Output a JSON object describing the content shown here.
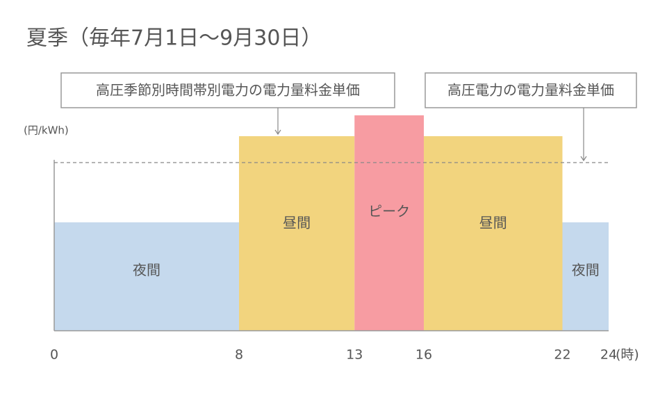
{
  "chart_data": {
    "type": "step",
    "title": "夏季（毎年7月1日～9月30日）",
    "y_label": "(円/kWh)",
    "x_label": "(時)",
    "categories": [
      "夜間",
      "昼間",
      "ピーク",
      "昼間",
      "夜間"
    ],
    "bins": [
      0,
      8,
      13,
      16,
      22,
      24
    ],
    "values": [
      156,
      280,
      310,
      280,
      156
    ],
    "colors": [
      "#c5d9ed",
      "#f2d47e",
      "#f79ca2",
      "#f2d47e",
      "#c5d9ed"
    ],
    "reference": {
      "value": 242,
      "color": "#888"
    },
    "annotations": [
      "高圧季節別時間帯別電力の電力量料金単価",
      "高圧電力の電力量料金単価"
    ],
    "xlim": [
      0,
      24
    ],
    "xticks": [
      0,
      8,
      13,
      16,
      22,
      24
    ],
    "ylim": [
      0,
      320
    ]
  }
}
